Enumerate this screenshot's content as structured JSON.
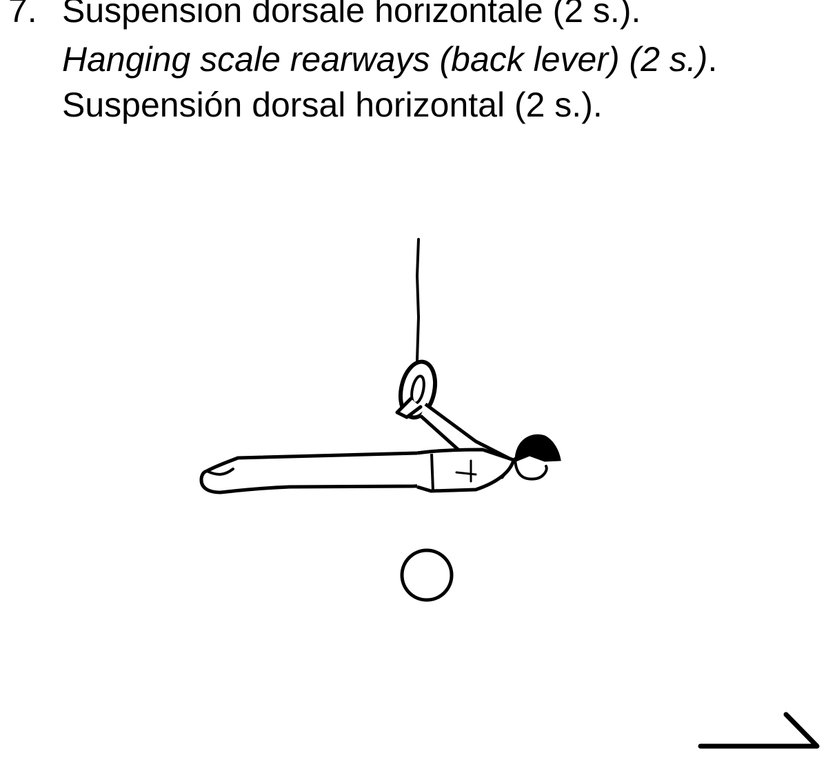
{
  "caption": {
    "number": "7.",
    "line_fr": "Suspension dorsale horizontale (2 s.).",
    "line_en_italic": "Hanging scale rearways (back lever) (2 s.)",
    "line_en_end": ".",
    "line_es": "Suspensión dorsal horizontal (2 s.)."
  },
  "colors": {
    "ink": "#000000",
    "paper": "#ffffff"
  }
}
